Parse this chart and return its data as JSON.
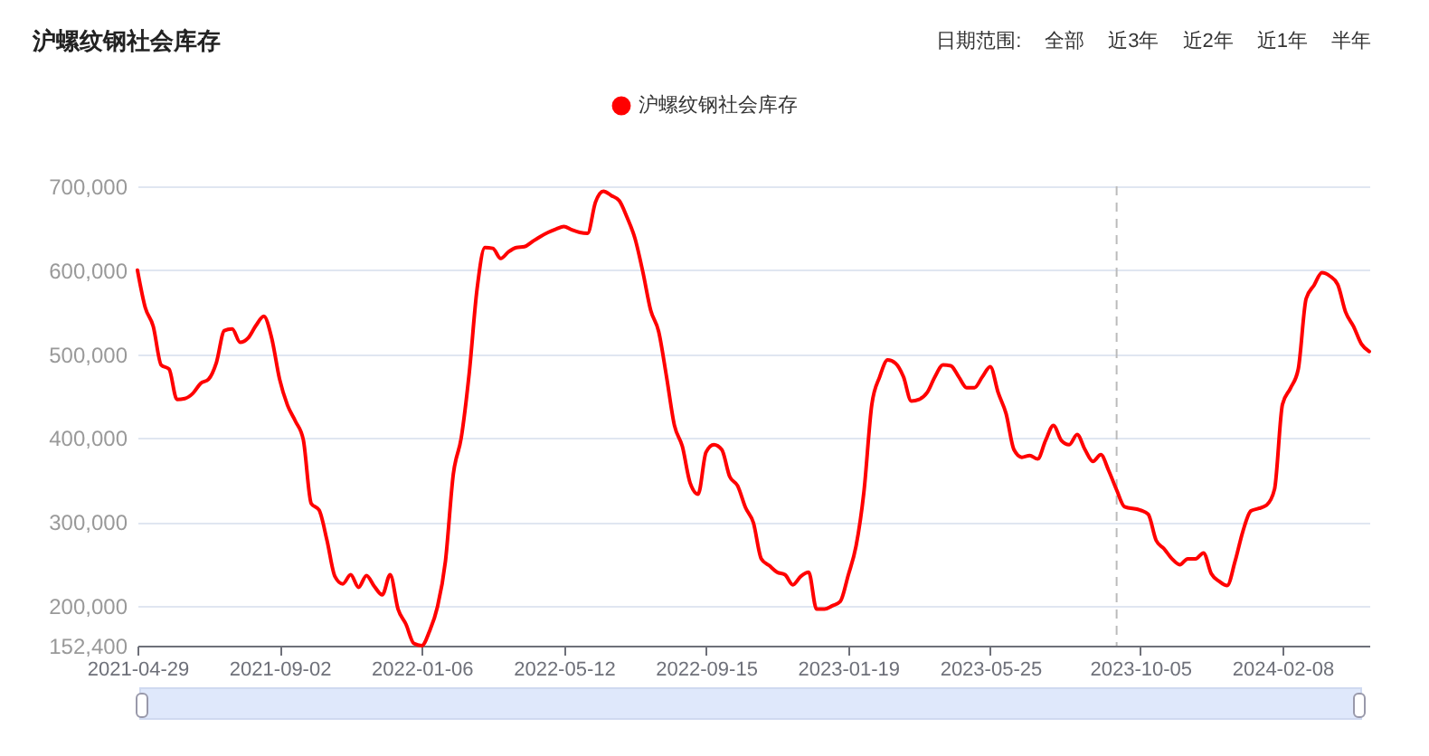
{
  "chart_data": {
    "type": "line",
    "title": "沪螺纹钢社会库存",
    "annotations": [
      "日期范围:",
      "全部",
      "近3年",
      "近2年",
      "近1年",
      "半年"
    ],
    "legend": "top",
    "line_style": "solid",
    "grid": "y",
    "x": [
      "2021-04-29",
      "2021-05-06",
      "2021-05-13",
      "2021-05-20",
      "2021-05-27",
      "2021-06-03",
      "2021-06-10",
      "2021-06-17",
      "2021-06-24",
      "2021-07-01",
      "2021-07-08",
      "2021-07-15",
      "2021-07-22",
      "2021-07-29",
      "2021-08-05",
      "2021-08-12",
      "2021-08-19",
      "2021-08-26",
      "2021-09-02",
      "2021-09-09",
      "2021-09-16",
      "2021-09-23",
      "2021-09-30",
      "2021-10-07",
      "2021-10-14",
      "2021-10-21",
      "2021-10-28",
      "2021-11-04",
      "2021-11-11",
      "2021-11-18",
      "2021-11-25",
      "2021-12-02",
      "2021-12-09",
      "2021-12-16",
      "2021-12-23",
      "2021-12-30",
      "2022-01-06",
      "2022-01-13",
      "2022-01-20",
      "2022-01-27",
      "2022-02-03",
      "2022-02-10",
      "2022-02-17",
      "2022-02-24",
      "2022-03-03",
      "2022-03-10",
      "2022-03-17",
      "2022-03-24",
      "2022-03-31",
      "2022-04-07",
      "2022-04-14",
      "2022-04-21",
      "2022-04-28",
      "2022-05-05",
      "2022-05-12",
      "2022-05-19",
      "2022-05-26",
      "2022-06-02",
      "2022-06-09",
      "2022-06-16",
      "2022-06-23",
      "2022-06-30",
      "2022-07-07",
      "2022-07-14",
      "2022-07-21",
      "2022-07-28",
      "2022-08-04",
      "2022-08-11",
      "2022-08-18",
      "2022-08-25",
      "2022-09-01",
      "2022-09-08",
      "2022-09-15",
      "2022-09-22",
      "2022-09-29",
      "2022-10-06",
      "2022-10-13",
      "2022-10-20",
      "2022-10-27",
      "2022-11-03",
      "2022-11-10",
      "2022-11-17",
      "2022-11-24",
      "2022-12-01",
      "2022-12-08",
      "2022-12-15",
      "2022-12-22",
      "2022-12-29",
      "2023-01-05",
      "2023-01-12",
      "2023-01-19",
      "2023-01-26",
      "2023-02-02",
      "2023-02-09",
      "2023-02-16",
      "2023-02-23",
      "2023-03-02",
      "2023-03-09",
      "2023-03-16",
      "2023-03-23",
      "2023-03-30",
      "2023-04-06",
      "2023-04-13",
      "2023-04-20",
      "2023-04-27",
      "2023-05-04",
      "2023-05-11",
      "2023-05-18",
      "2023-05-25",
      "2023-06-01",
      "2023-06-08",
      "2023-06-15",
      "2023-06-22",
      "2023-06-29",
      "2023-07-06",
      "2023-07-13",
      "2023-07-20",
      "2023-07-27",
      "2023-08-03",
      "2023-08-10",
      "2023-08-17",
      "2023-08-24",
      "2023-08-31",
      "2023-09-07",
      "2023-09-14",
      "2023-09-21",
      "2023-10-05",
      "2023-10-12",
      "2023-10-19",
      "2023-10-26",
      "2023-11-02",
      "2023-11-09",
      "2023-11-16",
      "2023-11-23",
      "2023-11-30",
      "2023-12-07",
      "2023-12-14",
      "2023-12-21",
      "2023-12-28",
      "2024-01-04",
      "2024-01-11",
      "2024-01-18",
      "2024-01-25",
      "2024-02-01",
      "2024-02-08",
      "2024-02-15",
      "2024-02-22",
      "2024-02-29",
      "2024-03-07",
      "2024-03-14",
      "2024-03-21",
      "2024-03-28",
      "2024-04-04",
      "2024-04-11",
      "2024-04-18",
      "2024-04-25"
    ],
    "series": [
      {
        "name": "沪螺纹钢社会库存",
        "color": "#ff0000",
        "values": [
          600000,
          555000,
          533000,
          487000,
          482000,
          446000,
          447000,
          453000,
          465000,
          470000,
          490000,
          528000,
          530000,
          514000,
          519000,
          534000,
          545000,
          519000,
          470000,
          439000,
          420000,
          398000,
          322000,
          314000,
          278000,
          235000,
          226000,
          237000,
          222000,
          236000,
          223000,
          213000,
          237000,
          196000,
          178000,
          155000,
          152400,
          170000,
          199000,
          253000,
          357000,
          400000,
          476000,
          577000,
          627000,
          626000,
          614000,
          622000,
          627000,
          628000,
          634000,
          640000,
          645000,
          649000,
          652000,
          648000,
          645000,
          644000,
          681000,
          694000,
          689000,
          683000,
          663000,
          638000,
          598000,
          552000,
          527000,
          473000,
          415000,
          390000,
          346000,
          333000,
          383000,
          392000,
          386000,
          354000,
          343000,
          317000,
          299000,
          256000,
          248000,
          240000,
          237000,
          225000,
          235000,
          240000,
          196000,
          196000,
          200000,
          205000,
          236000,
          271000,
          336000,
          440000,
          473000,
          493000,
          489000,
          473000,
          444000,
          446000,
          454000,
          473000,
          487000,
          486000,
          473000,
          460000,
          460000,
          473000,
          485000,
          454000,
          429000,
          386000,
          377000,
          379000,
          375000,
          397000,
          415000,
          397000,
          392000,
          404000,
          386000,
          372000,
          380000,
          361000,
          338000,
          318000,
          314000,
          309000,
          278000,
          268000,
          256000,
          249000,
          256000,
          256000,
          263000,
          238000,
          229000,
          224000,
          253000,
          289000,
          313000,
          316000,
          320000,
          339000,
          440000,
          459000,
          482000,
          566000,
          582000,
          597000,
          593000,
          583000,
          550000,
          533000,
          512000,
          503000
        ]
      }
    ],
    "xlim": [
      "2021-04-29",
      "2024-04-25"
    ],
    "xticks": [
      "2021-04-29",
      "2021-09-02",
      "2022-01-06",
      "2022-05-12",
      "2022-09-15",
      "2023-01-19",
      "2023-05-25",
      "2023-10-05",
      "2024-02-08"
    ],
    "ylim": [
      152400,
      700000
    ],
    "yticks": [
      {
        "value": 152400,
        "label": "152,400"
      },
      {
        "value": 200000,
        "label": "200,000"
      },
      {
        "value": 300000,
        "label": "300,000"
      },
      {
        "value": 400000,
        "label": "400,000"
      },
      {
        "value": 500000,
        "label": "500,000"
      },
      {
        "value": 600000,
        "label": "600,000"
      },
      {
        "value": 700000,
        "label": "700,000"
      }
    ],
    "ref_lines": [
      {
        "axis": "x",
        "value": "2023-09-14",
        "color": "#bbbbbb",
        "line_style": "dashed"
      }
    ]
  }
}
